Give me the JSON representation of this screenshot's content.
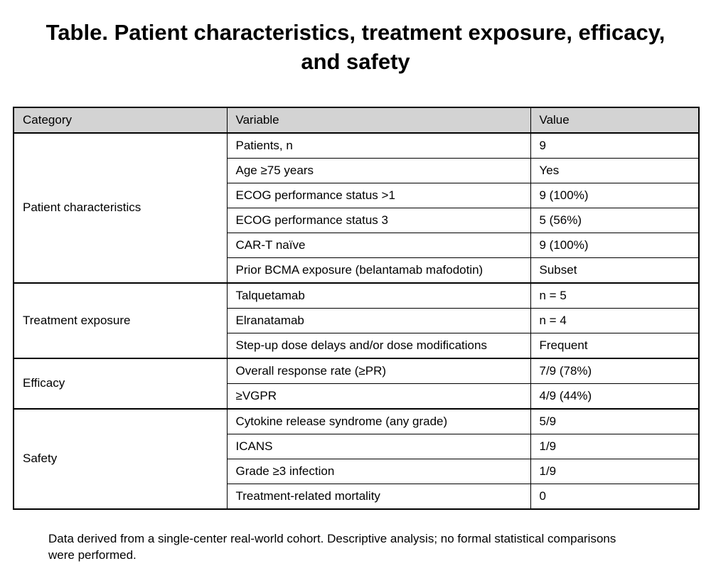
{
  "title": "Table. Patient characteristics, treatment exposure, efficacy, and safety",
  "table": {
    "headers": [
      "Category",
      "Variable",
      "Value"
    ],
    "sections": [
      {
        "category": "Patient characteristics",
        "rows": [
          {
            "variable": "Patients, n",
            "value": "9"
          },
          {
            "variable": "Age ≥75 years",
            "value": "Yes"
          },
          {
            "variable": "ECOG performance status >1",
            "value": "9 (100%)"
          },
          {
            "variable": "ECOG performance status 3",
            "value": "5 (56%)"
          },
          {
            "variable": "CAR-T naïve",
            "value": "9 (100%)"
          },
          {
            "variable": "Prior BCMA exposure (belantamab mafodotin)",
            "value": "Subset"
          }
        ]
      },
      {
        "category": "Treatment exposure",
        "rows": [
          {
            "variable": "Talquetamab",
            "value": "n = 5"
          },
          {
            "variable": "Elranatamab",
            "value": "n = 4"
          },
          {
            "variable": "Step-up dose delays and/or dose modifications",
            "value": "Frequent"
          }
        ]
      },
      {
        "category": "Efficacy",
        "rows": [
          {
            "variable": "Overall response rate (≥PR)",
            "value": "7/9 (78%)"
          },
          {
            "variable": "≥VGPR",
            "value": "4/9 (44%)"
          }
        ]
      },
      {
        "category": "Safety",
        "rows": [
          {
            "variable": "Cytokine release syndrome (any grade)",
            "value": "5/9"
          },
          {
            "variable": "ICANS",
            "value": "1/9"
          },
          {
            "variable": "Grade ≥3 infection",
            "value": "1/9"
          },
          {
            "variable": "Treatment-related mortality",
            "value": "0"
          }
        ]
      }
    ]
  },
  "footnote": "Data derived from a single-center real-world cohort. Descriptive analysis; no formal statistical comparisons were performed.",
  "colors": {
    "header_bg": "#d3d3d3",
    "border": "#000000",
    "text": "#000000",
    "background": "#ffffff"
  }
}
